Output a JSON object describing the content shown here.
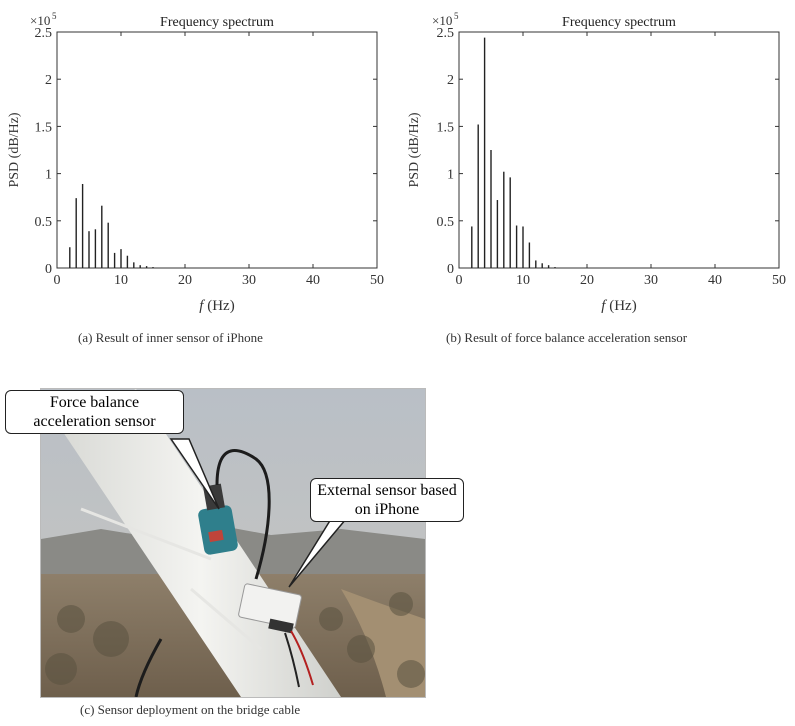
{
  "chart_data": [
    {
      "type": "bar",
      "title": "Frequency spectrum",
      "xlabel_italic": "f",
      "xlabel_rest": "(Hz)",
      "ylabel": "PSD (dB/Hz)",
      "y_multiplier": "×10",
      "y_exponent": "5",
      "xlim": [
        0,
        50
      ],
      "ylim": [
        0,
        2.5
      ],
      "x_ticks": [
        0,
        10,
        20,
        30,
        40,
        50
      ],
      "y_ticks": [
        0,
        0.5,
        1,
        1.5,
        2,
        2.5
      ],
      "x": [
        2,
        3,
        4,
        5,
        6,
        7,
        8,
        9,
        10,
        11,
        12,
        13,
        14,
        15
      ],
      "values": [
        0.22,
        0.74,
        0.89,
        0.39,
        0.41,
        0.66,
        0.48,
        0.16,
        0.2,
        0.13,
        0.06,
        0.03,
        0.02,
        0.01
      ],
      "caption": "(a)  Result of inner sensor of iPhone"
    },
    {
      "type": "bar",
      "title": "Frequency spectrum",
      "xlabel_italic": "f",
      "xlabel_rest": "(Hz)",
      "ylabel": "PSD (dB/Hz)",
      "y_multiplier": "×10",
      "y_exponent": "5",
      "xlim": [
        0,
        50
      ],
      "ylim": [
        0,
        2.5
      ],
      "x_ticks": [
        0,
        10,
        20,
        30,
        40,
        50
      ],
      "y_ticks": [
        0,
        0.5,
        1,
        1.5,
        2,
        2.5
      ],
      "x": [
        2,
        3,
        4,
        5,
        6,
        7,
        8,
        9,
        10,
        11,
        12,
        13,
        14,
        15
      ],
      "values": [
        0.44,
        1.52,
        2.44,
        1.25,
        0.72,
        1.02,
        0.96,
        0.45,
        0.44,
        0.27,
        0.08,
        0.05,
        0.03,
        0.01
      ],
      "caption": "(b)  Result of force balance acceleration sensor"
    }
  ],
  "photo": {
    "callout_force": "Force balance acceleration sensor",
    "callout_external": "External sensor based on iPhone",
    "caption": "(c) Sensor deployment on the bridge cable"
  }
}
